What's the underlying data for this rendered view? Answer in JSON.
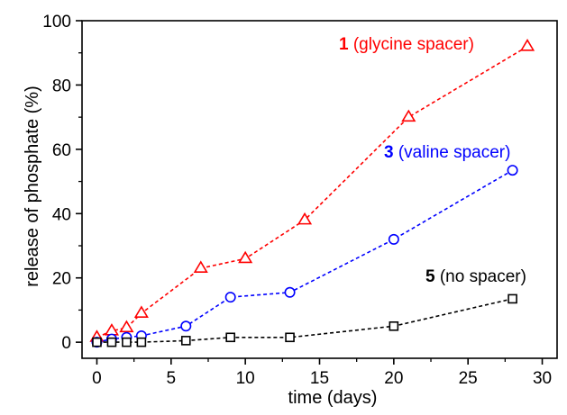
{
  "chart_data": {
    "type": "line",
    "xlabel": "time (days)",
    "ylabel": "release of phosphate (%)",
    "xlim": [
      -1,
      31
    ],
    "ylim": [
      -5,
      100
    ],
    "xticks": [
      0,
      5,
      10,
      15,
      20,
      25,
      30
    ],
    "yticks": [
      0,
      20,
      40,
      60,
      80,
      100
    ],
    "grid": false,
    "series": [
      {
        "id": "glycine",
        "label_number": "1",
        "label_text": " (glycine spacer)",
        "color": "#ff0000",
        "marker": "triangle",
        "x": [
          0,
          1,
          2,
          3,
          7,
          10,
          14,
          21,
          29
        ],
        "y": [
          1.5,
          3.5,
          4.5,
          9,
          23,
          26,
          38,
          70,
          92
        ]
      },
      {
        "id": "valine",
        "label_number": "3",
        "label_text": " (valine spacer)",
        "color": "#0000ff",
        "marker": "circle",
        "x": [
          0,
          1,
          2,
          3,
          6,
          9,
          13,
          20,
          28
        ],
        "y": [
          0,
          1,
          1.5,
          2,
          5,
          14,
          15.5,
          32,
          53.5
        ]
      },
      {
        "id": "no-spacer",
        "label_number": "5",
        "label_text": " (no spacer)",
        "color": "#000000",
        "marker": "square",
        "x": [
          0,
          1,
          2,
          3,
          6,
          9,
          13,
          20,
          28
        ],
        "y": [
          0,
          0,
          0,
          0,
          0.5,
          1.5,
          1.5,
          5,
          13.5
        ]
      }
    ]
  }
}
